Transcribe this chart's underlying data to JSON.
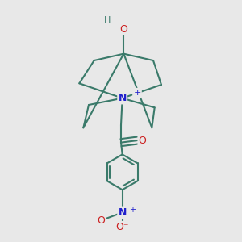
{
  "bg_color": "#e8e8e8",
  "bond_color": "#3a7a6a",
  "atom_colors": {
    "N": "#2020cc",
    "O": "#cc2020",
    "H": "#3a7a6a",
    "plus": "#2020cc"
  },
  "bond_width": 1.5,
  "figsize": [
    3.0,
    3.0
  ],
  "dpi": 100
}
